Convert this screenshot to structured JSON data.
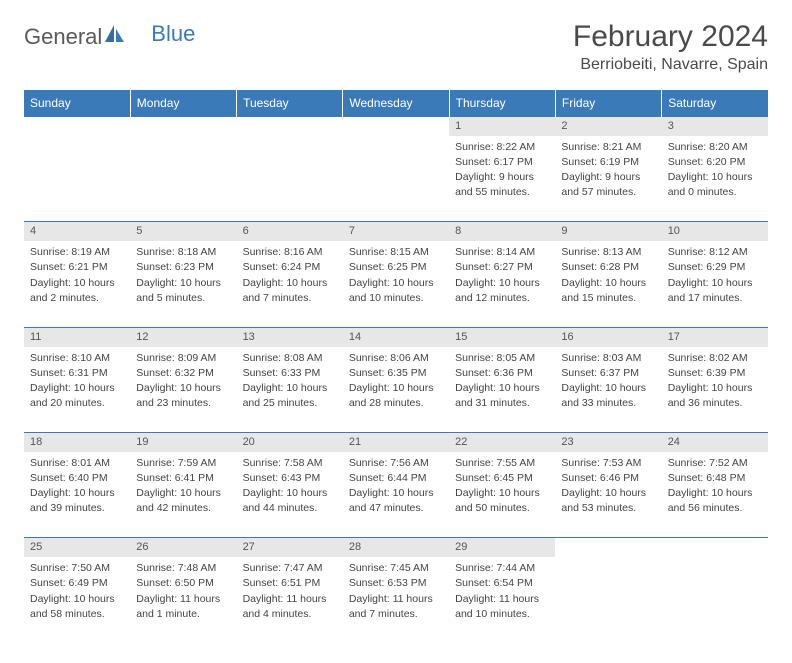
{
  "logo": {
    "part1": "General",
    "part2": "Blue"
  },
  "title": "February 2024",
  "location": "Berriobeiti, Navarre, Spain",
  "colors": {
    "headerBg": "#3a7ab8",
    "headerText": "#ffffff",
    "dayNumBg": "#e7e7e7",
    "ruleColor": "#3a7ab8",
    "textColor": "#444444",
    "titleColor": "#4a4a4a",
    "logoGray": "#5a5a5a",
    "logoBlue": "#3a7ab8",
    "pageBg": "#ffffff"
  },
  "typography": {
    "title_fontsize": 30,
    "location_fontsize": 16,
    "weekday_fontsize": 12,
    "daynum_fontsize": 11,
    "detail_fontsize": 10.5,
    "logo_fontsize": 22
  },
  "weekdays": [
    "Sunday",
    "Monday",
    "Tuesday",
    "Wednesday",
    "Thursday",
    "Friday",
    "Saturday"
  ],
  "weeks": [
    [
      null,
      null,
      null,
      null,
      {
        "n": "1",
        "sr": "Sunrise: 8:22 AM",
        "ss": "Sunset: 6:17 PM",
        "dl1": "Daylight: 9 hours",
        "dl2": "and 55 minutes."
      },
      {
        "n": "2",
        "sr": "Sunrise: 8:21 AM",
        "ss": "Sunset: 6:19 PM",
        "dl1": "Daylight: 9 hours",
        "dl2": "and 57 minutes."
      },
      {
        "n": "3",
        "sr": "Sunrise: 8:20 AM",
        "ss": "Sunset: 6:20 PM",
        "dl1": "Daylight: 10 hours",
        "dl2": "and 0 minutes."
      }
    ],
    [
      {
        "n": "4",
        "sr": "Sunrise: 8:19 AM",
        "ss": "Sunset: 6:21 PM",
        "dl1": "Daylight: 10 hours",
        "dl2": "and 2 minutes."
      },
      {
        "n": "5",
        "sr": "Sunrise: 8:18 AM",
        "ss": "Sunset: 6:23 PM",
        "dl1": "Daylight: 10 hours",
        "dl2": "and 5 minutes."
      },
      {
        "n": "6",
        "sr": "Sunrise: 8:16 AM",
        "ss": "Sunset: 6:24 PM",
        "dl1": "Daylight: 10 hours",
        "dl2": "and 7 minutes."
      },
      {
        "n": "7",
        "sr": "Sunrise: 8:15 AM",
        "ss": "Sunset: 6:25 PM",
        "dl1": "Daylight: 10 hours",
        "dl2": "and 10 minutes."
      },
      {
        "n": "8",
        "sr": "Sunrise: 8:14 AM",
        "ss": "Sunset: 6:27 PM",
        "dl1": "Daylight: 10 hours",
        "dl2": "and 12 minutes."
      },
      {
        "n": "9",
        "sr": "Sunrise: 8:13 AM",
        "ss": "Sunset: 6:28 PM",
        "dl1": "Daylight: 10 hours",
        "dl2": "and 15 minutes."
      },
      {
        "n": "10",
        "sr": "Sunrise: 8:12 AM",
        "ss": "Sunset: 6:29 PM",
        "dl1": "Daylight: 10 hours",
        "dl2": "and 17 minutes."
      }
    ],
    [
      {
        "n": "11",
        "sr": "Sunrise: 8:10 AM",
        "ss": "Sunset: 6:31 PM",
        "dl1": "Daylight: 10 hours",
        "dl2": "and 20 minutes."
      },
      {
        "n": "12",
        "sr": "Sunrise: 8:09 AM",
        "ss": "Sunset: 6:32 PM",
        "dl1": "Daylight: 10 hours",
        "dl2": "and 23 minutes."
      },
      {
        "n": "13",
        "sr": "Sunrise: 8:08 AM",
        "ss": "Sunset: 6:33 PM",
        "dl1": "Daylight: 10 hours",
        "dl2": "and 25 minutes."
      },
      {
        "n": "14",
        "sr": "Sunrise: 8:06 AM",
        "ss": "Sunset: 6:35 PM",
        "dl1": "Daylight: 10 hours",
        "dl2": "and 28 minutes."
      },
      {
        "n": "15",
        "sr": "Sunrise: 8:05 AM",
        "ss": "Sunset: 6:36 PM",
        "dl1": "Daylight: 10 hours",
        "dl2": "and 31 minutes."
      },
      {
        "n": "16",
        "sr": "Sunrise: 8:03 AM",
        "ss": "Sunset: 6:37 PM",
        "dl1": "Daylight: 10 hours",
        "dl2": "and 33 minutes."
      },
      {
        "n": "17",
        "sr": "Sunrise: 8:02 AM",
        "ss": "Sunset: 6:39 PM",
        "dl1": "Daylight: 10 hours",
        "dl2": "and 36 minutes."
      }
    ],
    [
      {
        "n": "18",
        "sr": "Sunrise: 8:01 AM",
        "ss": "Sunset: 6:40 PM",
        "dl1": "Daylight: 10 hours",
        "dl2": "and 39 minutes."
      },
      {
        "n": "19",
        "sr": "Sunrise: 7:59 AM",
        "ss": "Sunset: 6:41 PM",
        "dl1": "Daylight: 10 hours",
        "dl2": "and 42 minutes."
      },
      {
        "n": "20",
        "sr": "Sunrise: 7:58 AM",
        "ss": "Sunset: 6:43 PM",
        "dl1": "Daylight: 10 hours",
        "dl2": "and 44 minutes."
      },
      {
        "n": "21",
        "sr": "Sunrise: 7:56 AM",
        "ss": "Sunset: 6:44 PM",
        "dl1": "Daylight: 10 hours",
        "dl2": "and 47 minutes."
      },
      {
        "n": "22",
        "sr": "Sunrise: 7:55 AM",
        "ss": "Sunset: 6:45 PM",
        "dl1": "Daylight: 10 hours",
        "dl2": "and 50 minutes."
      },
      {
        "n": "23",
        "sr": "Sunrise: 7:53 AM",
        "ss": "Sunset: 6:46 PM",
        "dl1": "Daylight: 10 hours",
        "dl2": "and 53 minutes."
      },
      {
        "n": "24",
        "sr": "Sunrise: 7:52 AM",
        "ss": "Sunset: 6:48 PM",
        "dl1": "Daylight: 10 hours",
        "dl2": "and 56 minutes."
      }
    ],
    [
      {
        "n": "25",
        "sr": "Sunrise: 7:50 AM",
        "ss": "Sunset: 6:49 PM",
        "dl1": "Daylight: 10 hours",
        "dl2": "and 58 minutes."
      },
      {
        "n": "26",
        "sr": "Sunrise: 7:48 AM",
        "ss": "Sunset: 6:50 PM",
        "dl1": "Daylight: 11 hours",
        "dl2": "and 1 minute."
      },
      {
        "n": "27",
        "sr": "Sunrise: 7:47 AM",
        "ss": "Sunset: 6:51 PM",
        "dl1": "Daylight: 11 hours",
        "dl2": "and 4 minutes."
      },
      {
        "n": "28",
        "sr": "Sunrise: 7:45 AM",
        "ss": "Sunset: 6:53 PM",
        "dl1": "Daylight: 11 hours",
        "dl2": "and 7 minutes."
      },
      {
        "n": "29",
        "sr": "Sunrise: 7:44 AM",
        "ss": "Sunset: 6:54 PM",
        "dl1": "Daylight: 11 hours",
        "dl2": "and 10 minutes."
      },
      null,
      null
    ]
  ]
}
